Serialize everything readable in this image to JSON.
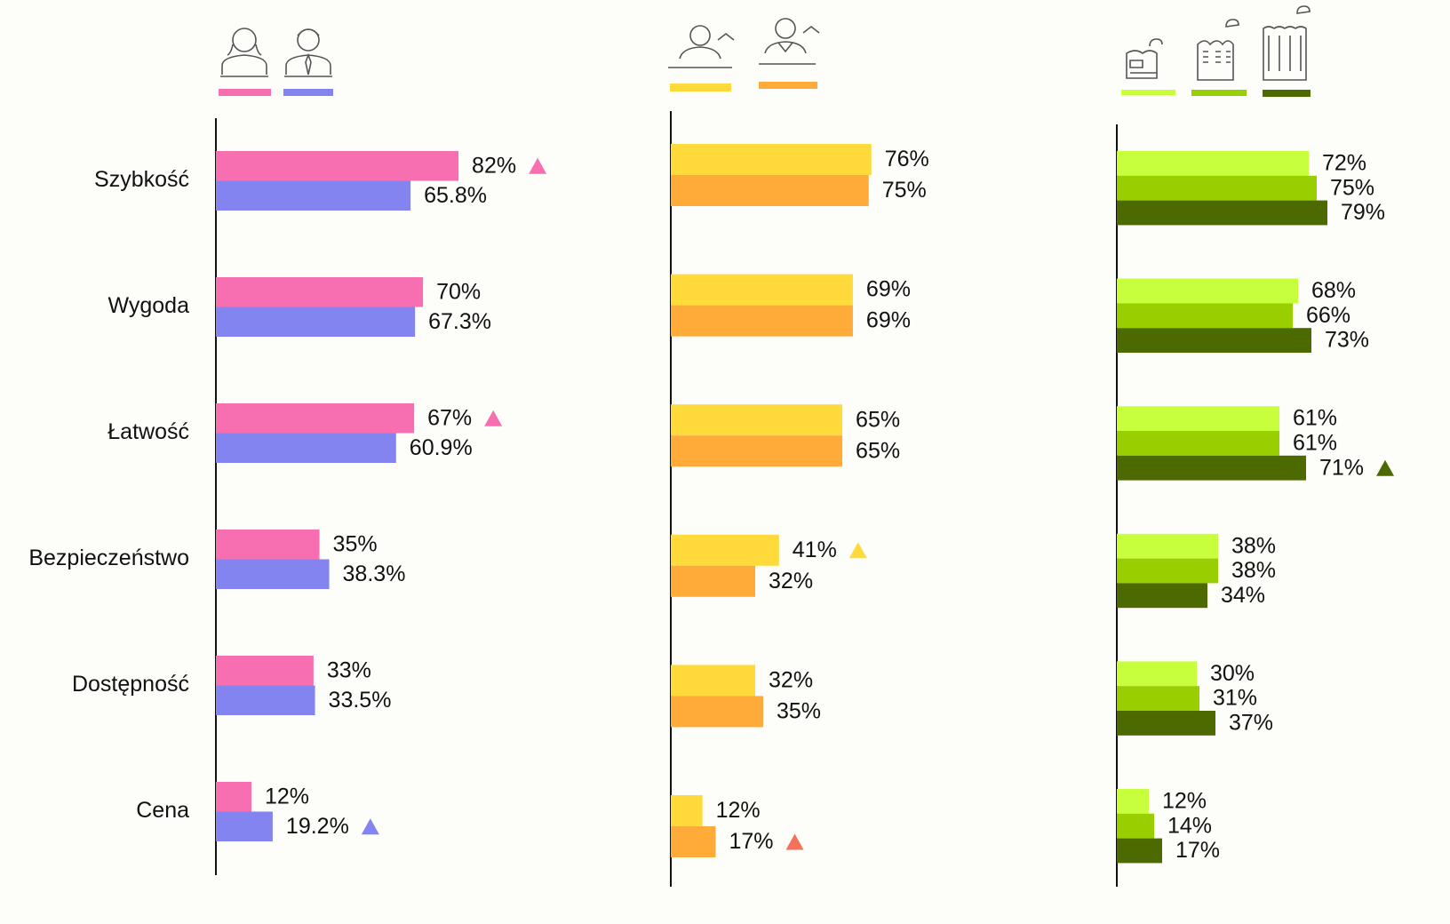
{
  "chart_data": [
    {
      "type": "barh",
      "categories": [
        "Szybkość",
        "Wygoda",
        "Łatwość",
        "Bezpieczeństwo",
        "Dostępność",
        "Cena"
      ],
      "series": [
        {
          "color": "#f76fb0",
          "values": [
            82,
            70,
            67,
            35,
            33,
            12
          ],
          "value_labels": [
            "82%",
            "70%",
            "67%",
            "35%",
            "33%",
            "12%"
          ]
        },
        {
          "color": "#8484f0",
          "values": [
            65.8,
            67.3,
            60.9,
            38.3,
            33.5,
            19.2
          ],
          "value_labels": [
            "65.8%",
            "67.3%",
            "60.9%",
            "38.3%",
            "33.5%",
            "19.2%"
          ]
        }
      ],
      "markers": [
        {
          "series": 0,
          "index": 0,
          "color": "#f76fb0"
        },
        {
          "series": 0,
          "index": 2,
          "color": "#f76fb0"
        },
        {
          "series": 1,
          "index": 5,
          "color": "#8484f0"
        }
      ]
    },
    {
      "type": "barh",
      "series": [
        {
          "color": "#fedb3a",
          "values": [
            76,
            69,
            65,
            41,
            32,
            12
          ],
          "value_labels": [
            "76%",
            "69%",
            "65%",
            "41%",
            "32%",
            "12%"
          ]
        },
        {
          "color": "#feab3a",
          "values": [
            75,
            69,
            65,
            32,
            35,
            17
          ],
          "value_labels": [
            "75%",
            "69%",
            "65%",
            "32%",
            "35%",
            "17%"
          ]
        }
      ],
      "markers": [
        {
          "series": 0,
          "index": 3,
          "color": "#fedb3a"
        },
        {
          "series": 1,
          "index": 5,
          "color": "#f4715a"
        }
      ]
    },
    {
      "type": "barh",
      "series": [
        {
          "color": "#c8ff3c",
          "values": [
            72,
            68,
            61,
            38,
            30,
            12
          ],
          "value_labels": [
            "72%",
            "68%",
            "61%",
            "38%",
            "30%",
            "12%"
          ]
        },
        {
          "color": "#99cf00",
          "values": [
            75,
            66,
            61,
            38,
            31,
            14
          ],
          "value_labels": [
            "75%",
            "66%",
            "61%",
            "38%",
            "31%",
            "14%"
          ]
        },
        {
          "color": "#4c6a00",
          "values": [
            79,
            73,
            71,
            34,
            37,
            17
          ],
          "value_labels": [
            "79%",
            "73%",
            "71%",
            "34%",
            "37%",
            "17%"
          ]
        }
      ],
      "markers": [
        {
          "series": 2,
          "index": 2,
          "color": "#4c6a00"
        }
      ]
    }
  ]
}
